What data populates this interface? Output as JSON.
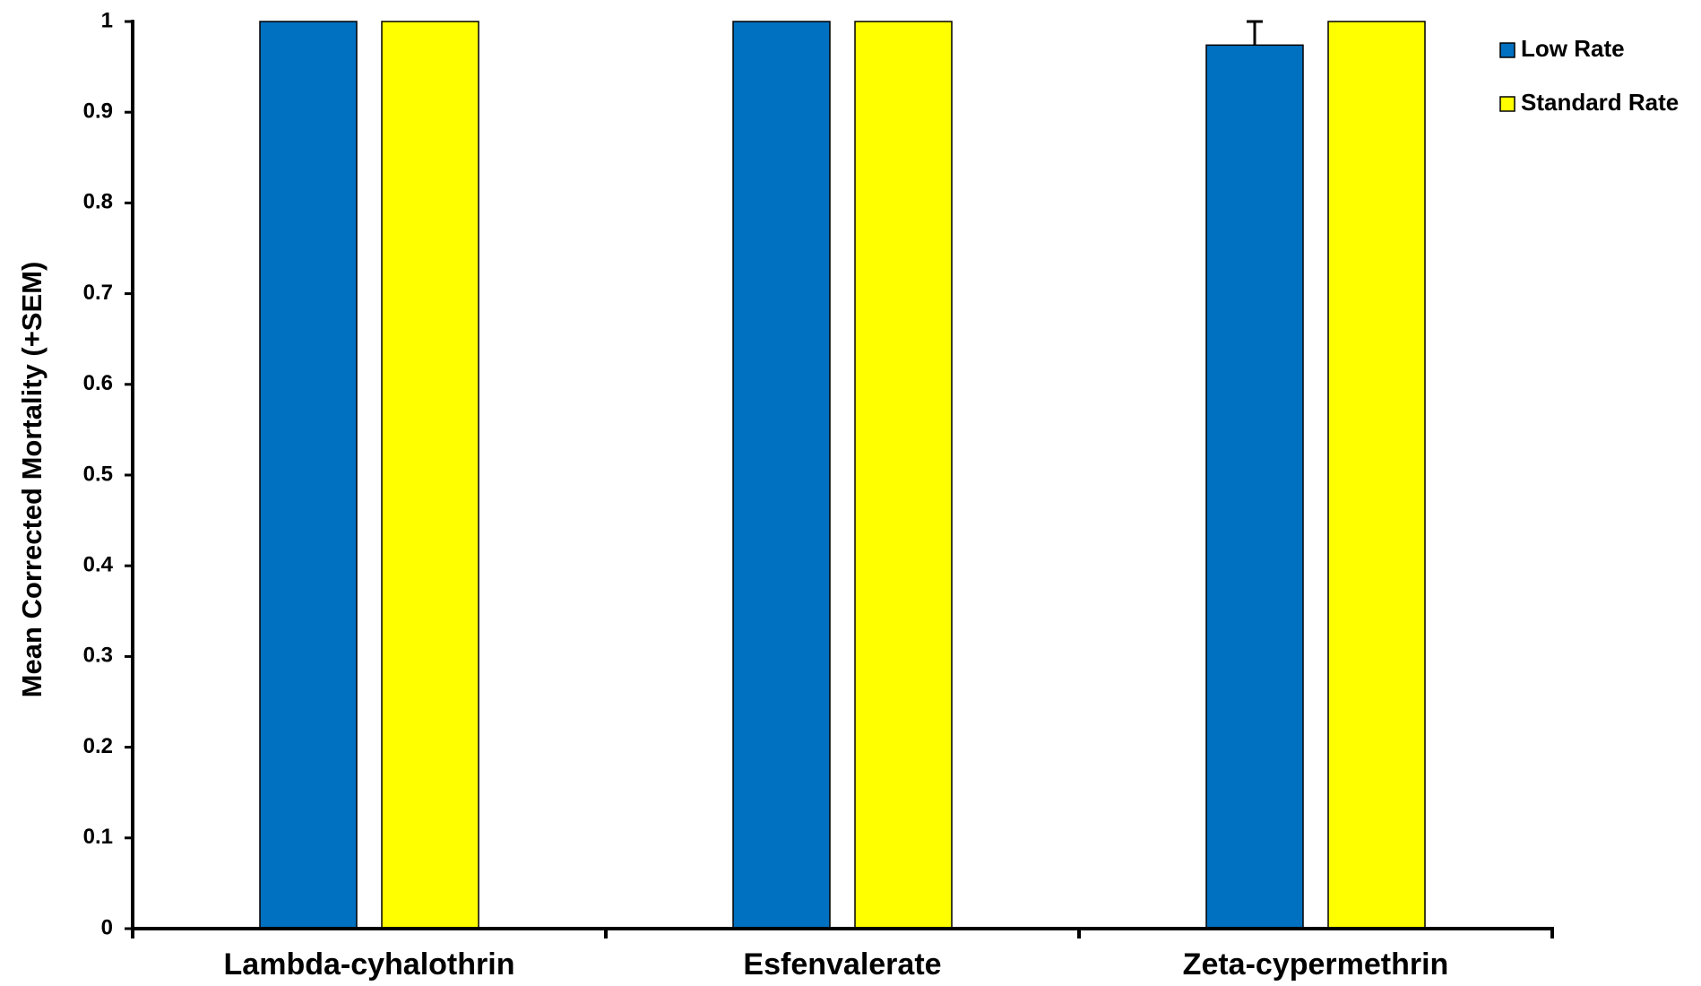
{
  "chart_data": {
    "type": "bar",
    "categories": [
      "Lambda-cyhalothrin",
      "Esfenvalerate",
      "Zeta-cypermethrin"
    ],
    "series": [
      {
        "name": "Low Rate",
        "color": "#0070c0",
        "values": [
          1,
          1,
          0.974
        ],
        "error_plus": [
          0,
          0,
          0.026
        ]
      },
      {
        "name": "Standard Rate",
        "color": "#ffff00",
        "values": [
          1,
          1,
          1
        ],
        "error_plus": [
          0,
          0,
          0
        ]
      }
    ],
    "ylabel": "Mean Corrected Mortality (+SEM)",
    "xlabel": "",
    "ylim": [
      0,
      1
    ],
    "yticks": [
      0,
      0.1,
      0.2,
      0.3,
      0.4,
      0.5,
      0.6,
      0.7,
      0.8,
      0.9,
      1
    ],
    "ytick_labels": [
      "0",
      "0.1",
      "0.2",
      "0.3",
      "0.4",
      "0.5",
      "0.6",
      "0.7",
      "0.8",
      "0.9",
      "1"
    ],
    "grid": false,
    "legend_position": "top-right"
  }
}
